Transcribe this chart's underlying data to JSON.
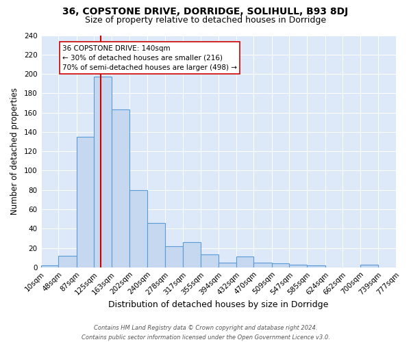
{
  "title1": "36, COPSTONE DRIVE, DORRIDGE, SOLIHULL, B93 8DJ",
  "title2": "Size of property relative to detached houses in Dorridge",
  "xlabel": "Distribution of detached houses by size in Dorridge",
  "ylabel": "Number of detached properties",
  "footer1": "Contains HM Land Registry data © Crown copyright and database right 2024.",
  "footer2": "Contains public sector information licensed under the Open Government Licence v3.0.",
  "bar_edges": [
    10,
    48,
    87,
    125,
    163,
    202,
    240,
    278,
    317,
    355,
    394,
    432,
    470,
    509,
    547,
    585,
    624,
    662,
    700,
    739,
    777
  ],
  "bar_heights": [
    2,
    12,
    135,
    197,
    163,
    80,
    46,
    22,
    26,
    13,
    5,
    11,
    5,
    4,
    3,
    2,
    0,
    0,
    3,
    0
  ],
  "bar_color": "#c5d8f0",
  "bar_edgecolor": "#5b9bd5",
  "vline_x": 140,
  "vline_color": "#cc0000",
  "annotation_title": "36 COPSTONE DRIVE: 140sqm",
  "annotation_line2": "← 30% of detached houses are smaller (216)",
  "annotation_line3": "70% of semi-detached houses are larger (498) →",
  "annotation_box_color": "#ffffff",
  "annotation_box_edgecolor": "#cc0000",
  "ylim": [
    0,
    240
  ],
  "yticks": [
    0,
    20,
    40,
    60,
    80,
    100,
    120,
    140,
    160,
    180,
    200,
    220,
    240
  ],
  "background_color": "#dde8f8",
  "title1_fontsize": 10,
  "title2_fontsize": 9,
  "xlabel_fontsize": 9,
  "ylabel_fontsize": 8.5,
  "tick_label_fontsize": 7.5,
  "footer_fontsize": 6,
  "annotation_fontsize": 7.5
}
